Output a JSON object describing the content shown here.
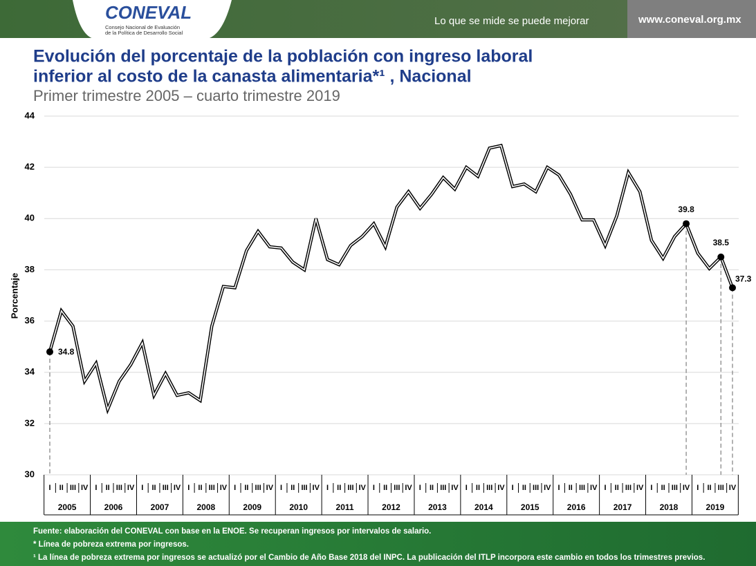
{
  "header": {
    "logo": "CONEVAL",
    "org_full": [
      "Consejo Nacional de Evaluación",
      "de la Política de Desarrollo Social"
    ],
    "slogan": "Lo que se mide se puede mejorar",
    "url": "www.coneval.org.mx"
  },
  "chart_data": {
    "type": "line",
    "title": [
      "Evolución del porcentaje de la población con ingreso laboral",
      "inferior al costo de la canasta alimentaria*¹ , Nacional"
    ],
    "subtitle": "Primer trimestre 2005 – cuarto trimestre 2019",
    "y_label": "Porcentaje",
    "categories": [
      "I",
      "II",
      "III",
      "IV",
      "I",
      "II",
      "III",
      "IV",
      "I",
      "II",
      "III",
      "IV",
      "I",
      "II",
      "III",
      "IV",
      "I",
      "II",
      "III",
      "IV",
      "I",
      "II",
      "III",
      "IV",
      "I",
      "II",
      "III",
      "IV",
      "I",
      "II",
      "III",
      "IV",
      "I",
      "II",
      "III",
      "IV",
      "I",
      "II",
      "III",
      "IV",
      "I",
      "II",
      "III",
      "IV",
      "I",
      "II",
      "III",
      "IV",
      "I",
      "II",
      "III",
      "IV",
      "I",
      "II",
      "III",
      "IV",
      "I",
      "II",
      "III",
      "IV"
    ],
    "years": [
      "2005",
      "2006",
      "2007",
      "2008",
      "2009",
      "2010",
      "2011",
      "2012",
      "2013",
      "2014",
      "2015",
      "2016",
      "2017",
      "2018",
      "2019"
    ],
    "values": [
      34.8,
      36.4,
      35.8,
      33.65,
      34.35,
      32.55,
      33.65,
      34.3,
      35.15,
      33.1,
      33.95,
      33.1,
      33.2,
      32.9,
      35.8,
      37.35,
      37.3,
      38.75,
      39.5,
      38.9,
      38.85,
      38.3,
      38.0,
      40.0,
      38.4,
      38.2,
      38.95,
      39.3,
      39.8,
      38.9,
      40.45,
      41.05,
      40.4,
      40.95,
      41.6,
      41.15,
      42.0,
      41.65,
      42.75,
      42.85,
      41.25,
      41.35,
      41.05,
      42.0,
      41.7,
      40.95,
      39.95,
      39.95,
      38.95,
      40.1,
      41.8,
      41.05,
      39.15,
      38.45,
      39.3,
      39.8,
      38.65,
      38.05,
      38.5,
      37.3
    ],
    "value_labels": [
      "34.8",
      null,
      null,
      null,
      null,
      null,
      null,
      null,
      null,
      null,
      null,
      null,
      null,
      null,
      null,
      null,
      null,
      null,
      null,
      null,
      null,
      null,
      null,
      null,
      null,
      null,
      null,
      null,
      null,
      null,
      null,
      null,
      null,
      null,
      null,
      null,
      null,
      null,
      null,
      null,
      null,
      null,
      null,
      null,
      null,
      null,
      null,
      null,
      null,
      null,
      null,
      null,
      null,
      null,
      null,
      "39.8",
      null,
      null,
      "38.5",
      "37.3"
    ],
    "color": "#000000",
    "ylim": [
      30,
      44
    ],
    "yticks": [
      30,
      32,
      34,
      36,
      38,
      40,
      42,
      44
    ],
    "grid": true,
    "notes": [
      "Fuente: elaboración del CONEVAL con base en la ENOE. Se recuperan ingresos por intervalos de salario.",
      "* Línea de pobreza extrema por ingresos.",
      "¹ La línea de pobreza extrema por ingresos se actualizó por el Cambio de Año Base 2018 del INPC. La publicación del ITLP incorpora este cambio en todos los trimestres previos."
    ]
  }
}
